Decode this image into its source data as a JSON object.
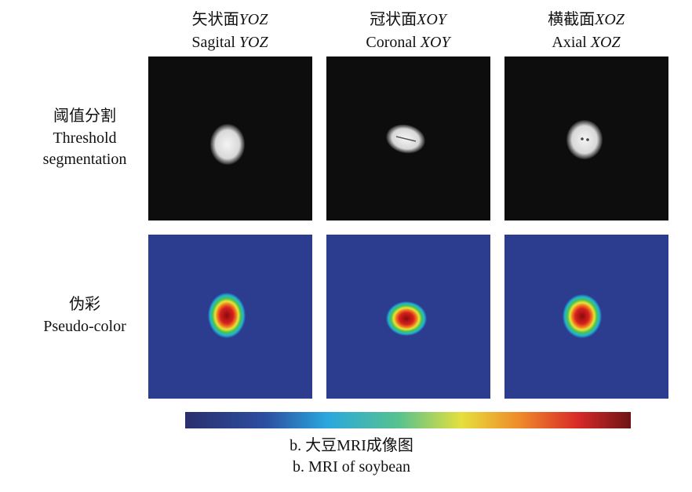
{
  "columns": [
    {
      "zh": "矢状面",
      "en": "Sagital",
      "plane": "YOZ"
    },
    {
      "zh": "冠状面",
      "en": "Coronal",
      "plane": "XOY"
    },
    {
      "zh": "横截面",
      "en": "Axial",
      "plane": "XOZ"
    }
  ],
  "rows": [
    {
      "zh": "阈值分割",
      "en": [
        "Threshold",
        "segmentation"
      ]
    },
    {
      "zh": "伪彩",
      "en": [
        "Pseudo-color"
      ]
    }
  ],
  "caption": {
    "zh": "b. 大豆MRI成像图",
    "en": "b. MRI of soybean"
  }
}
